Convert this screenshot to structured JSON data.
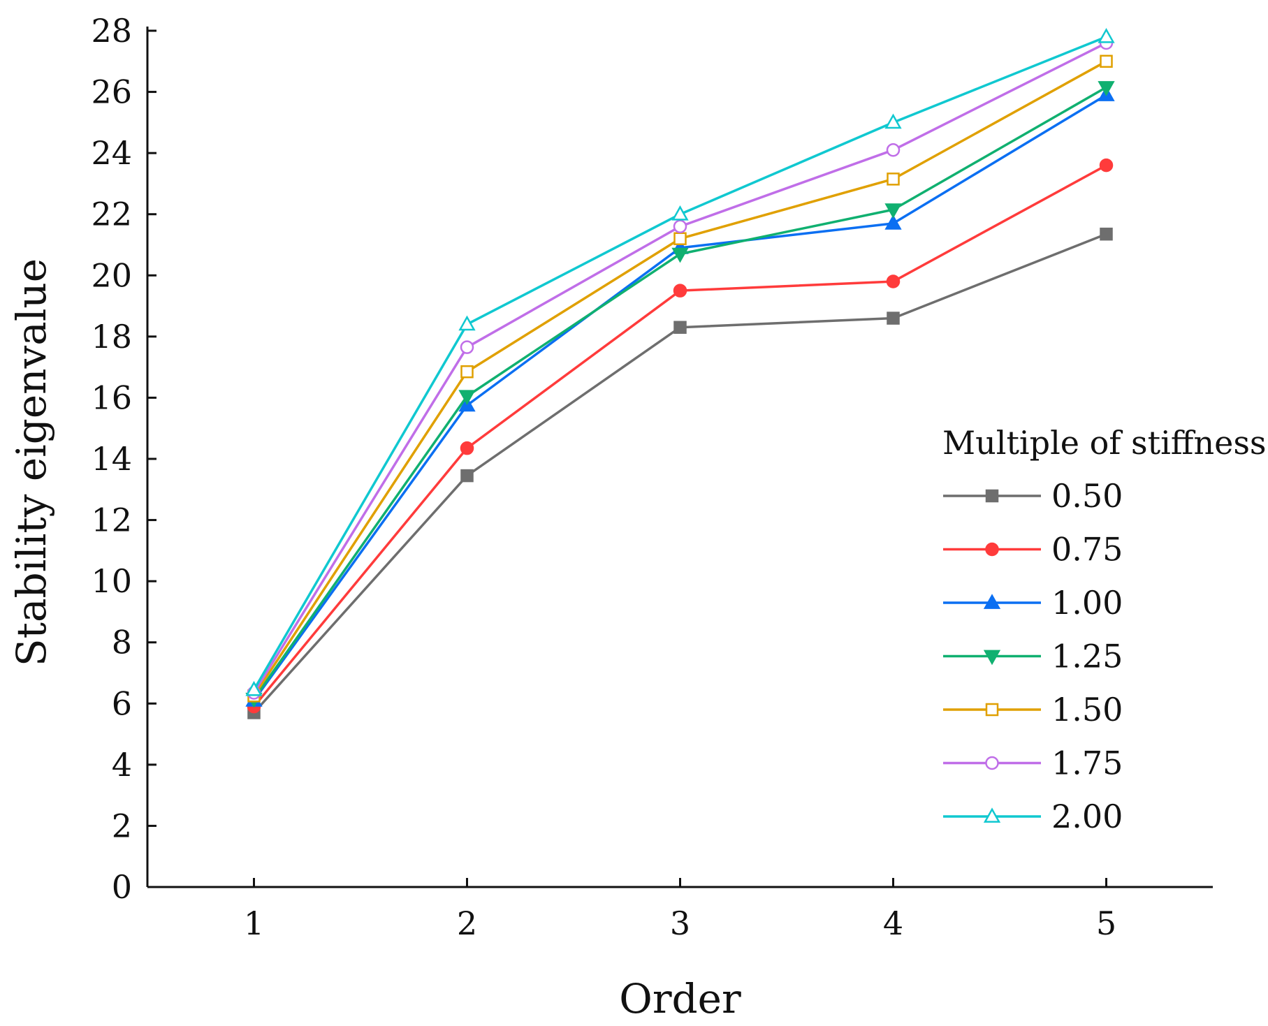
{
  "chart_data": {
    "type": "line",
    "xlabel": "Order",
    "ylabel": "Stability eigenvalue",
    "x": [
      1,
      2,
      3,
      4,
      5
    ],
    "x_tick_labels": [
      "1",
      "2",
      "3",
      "4",
      "5"
    ],
    "xlim": [
      0.5,
      5.5
    ],
    "ylim": [
      0,
      28
    ],
    "y_ticks": [
      0,
      2,
      4,
      6,
      8,
      10,
      12,
      14,
      16,
      18,
      20,
      22,
      24,
      26,
      28
    ],
    "y_tick_labels": [
      "0",
      "2",
      "4",
      "6",
      "8",
      "10",
      "12",
      "14",
      "16",
      "18",
      "20",
      "22",
      "24",
      "26",
      "28"
    ],
    "grid": false,
    "legend_title": "Multiple of stiffness",
    "legend_position": "right",
    "series": [
      {
        "name": "0.50",
        "values": [
          5.7,
          13.45,
          18.3,
          18.6,
          21.35
        ],
        "color": "#6e6e6e",
        "marker": "square-filled"
      },
      {
        "name": "0.75",
        "values": [
          5.9,
          14.35,
          19.5,
          19.8,
          23.6
        ],
        "color": "#ff3b3b",
        "marker": "circle-filled"
      },
      {
        "name": "1.00",
        "values": [
          6.1,
          15.75,
          20.9,
          21.7,
          25.9
        ],
        "color": "#0b6ff2",
        "marker": "triangle-up-filled"
      },
      {
        "name": "1.25",
        "values": [
          6.15,
          16.05,
          20.7,
          22.15,
          26.15
        ],
        "color": "#10b070",
        "marker": "triangle-down-filled"
      },
      {
        "name": "1.50",
        "values": [
          6.25,
          16.85,
          21.2,
          23.15,
          27.0
        ],
        "color": "#e0a000",
        "marker": "square-open"
      },
      {
        "name": "1.75",
        "values": [
          6.35,
          17.65,
          21.6,
          24.1,
          27.6
        ],
        "color": "#c06ee8",
        "marker": "circle-open"
      },
      {
        "name": "2.00",
        "values": [
          6.45,
          18.4,
          22.0,
          25.0,
          27.8
        ],
        "color": "#10c8d0",
        "marker": "triangle-up-open"
      }
    ]
  }
}
